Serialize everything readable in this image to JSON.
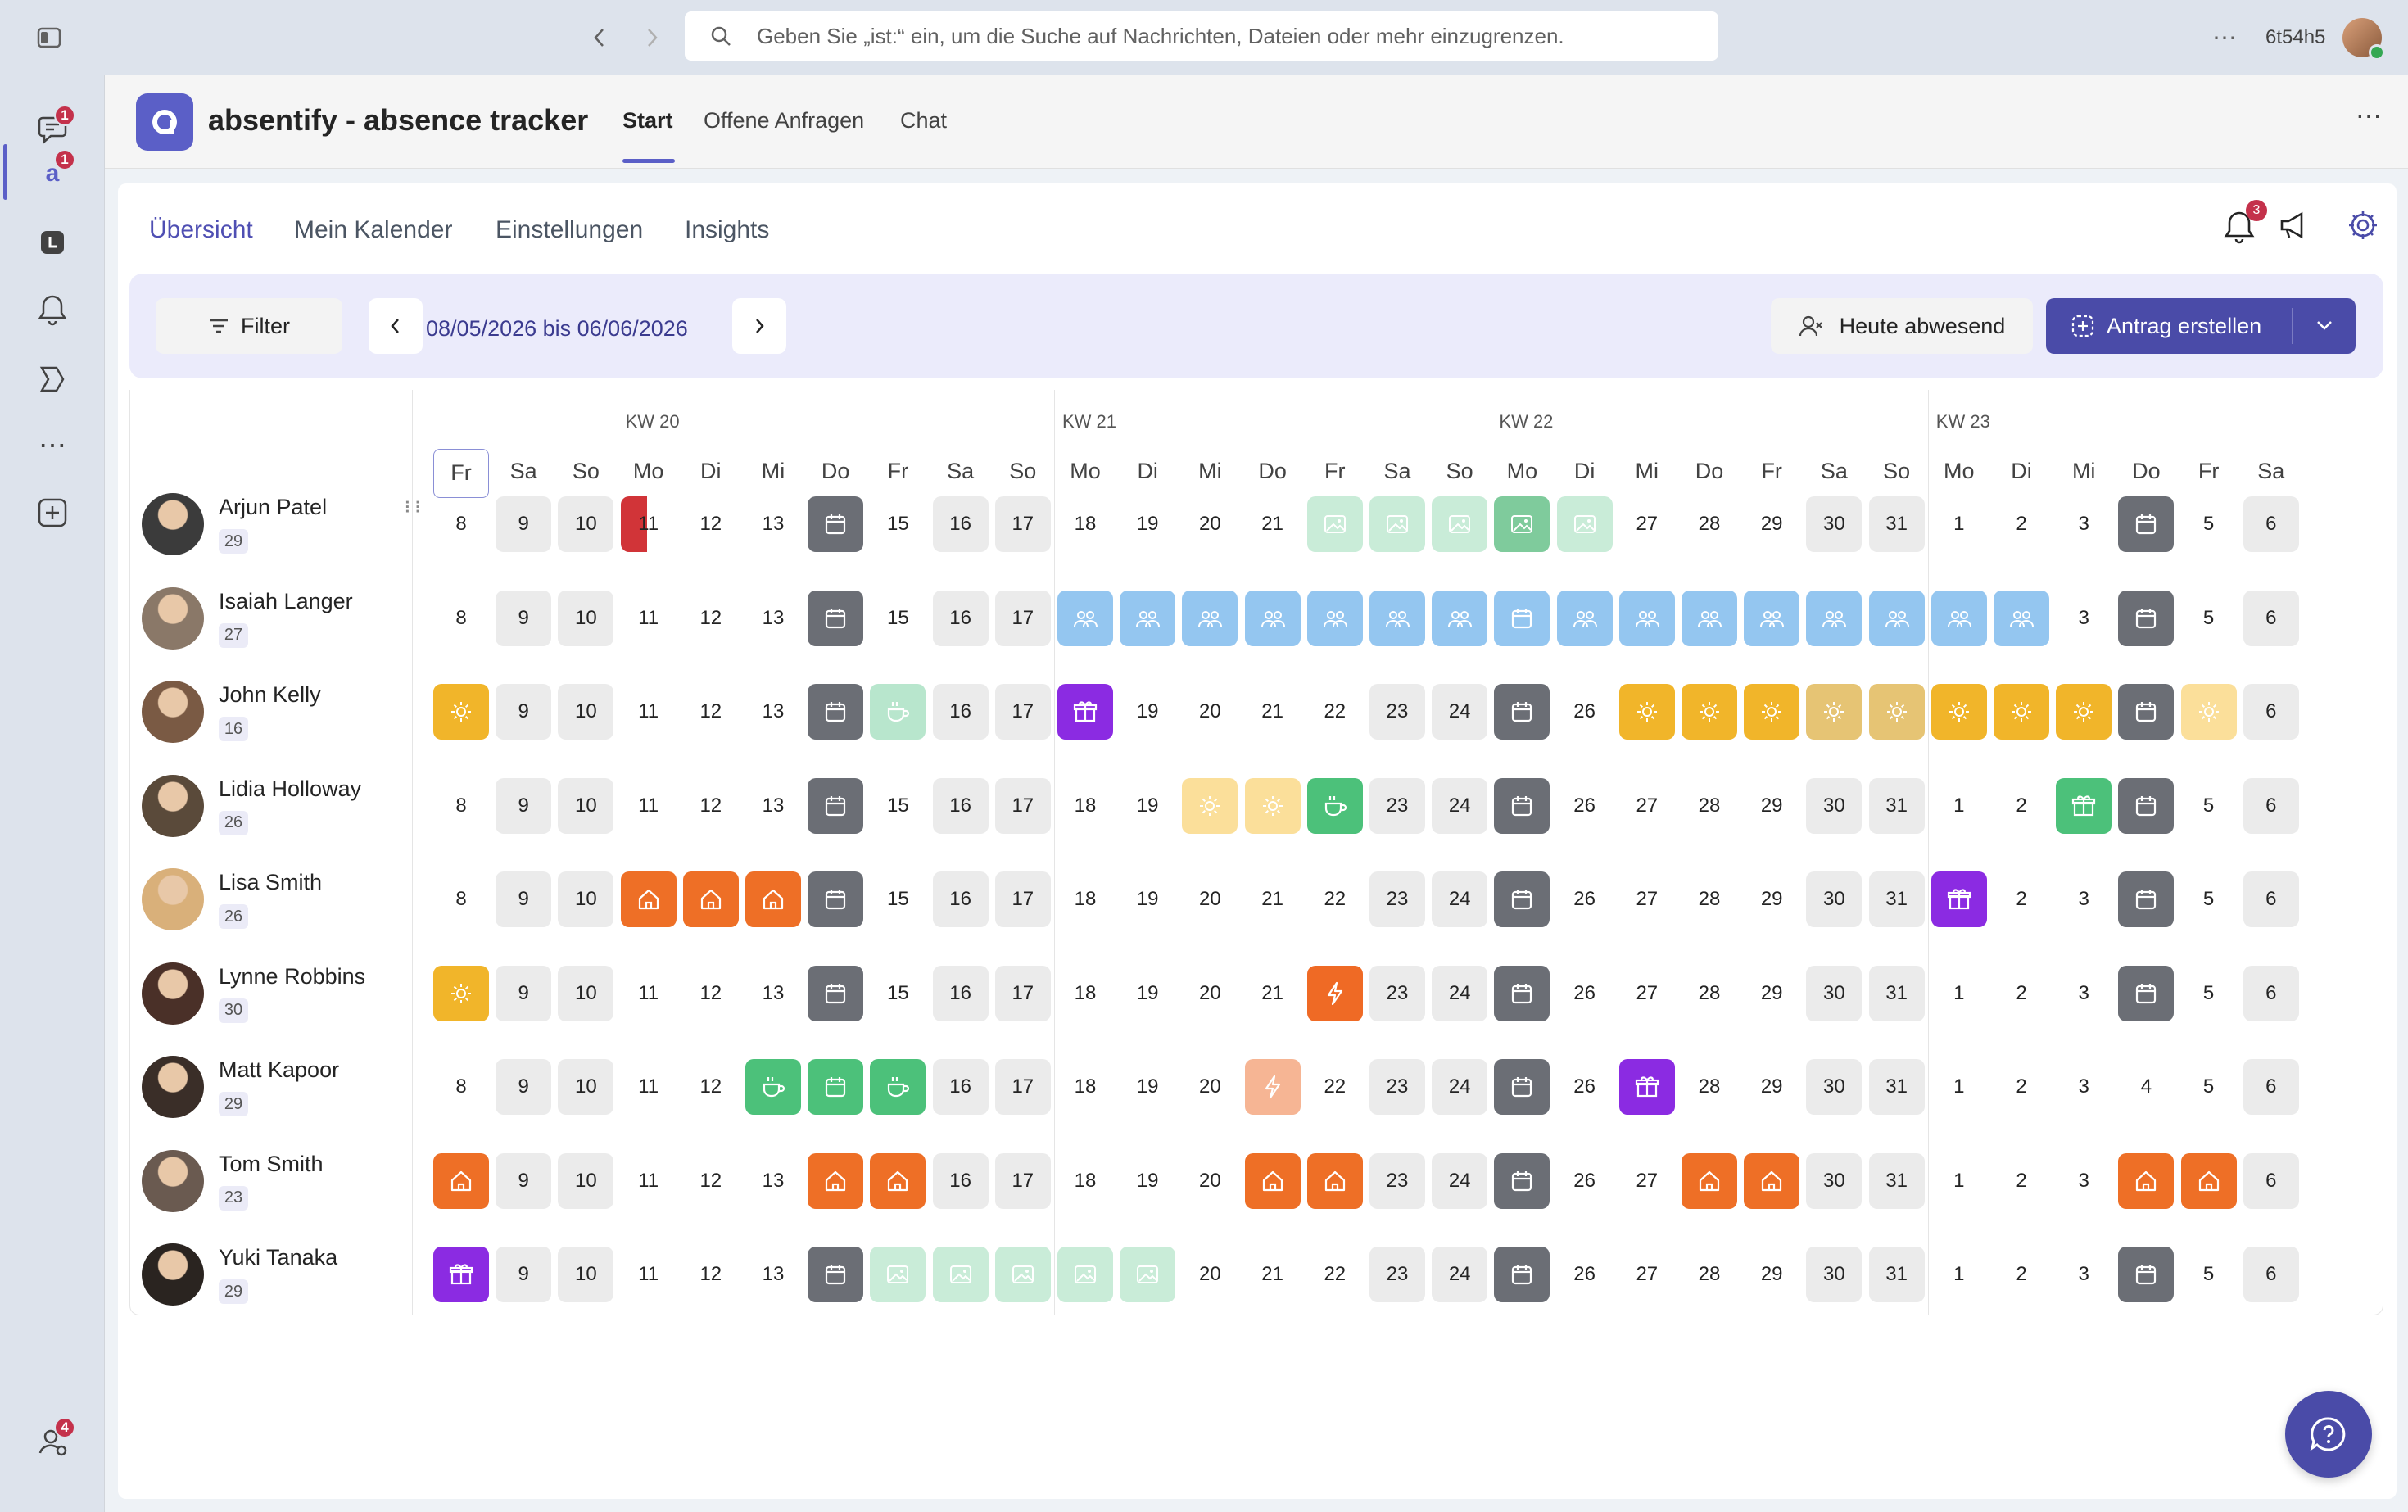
{
  "search": {
    "placeholder": "Geben Sie „ist:“ ein, um die Suche auf Nachrichten, Dateien oder mehr einzugrenzen."
  },
  "account": {
    "name": "6t54h5"
  },
  "rail": {
    "badges": {
      "chat": "1",
      "absentify": "1",
      "bottom": "4"
    }
  },
  "app": {
    "title": "absentify - absence tracker",
    "tabs": [
      "Start",
      "Offene Anfragen",
      "Chat"
    ]
  },
  "subtabs": [
    "Übersicht",
    "Mein Kalender",
    "Einstellungen",
    "Insights"
  ],
  "notifications": {
    "count": "3"
  },
  "toolbar": {
    "filter_label": "Filter",
    "date_range": "08/05/2026 bis 06/06/2026",
    "today_absent_label": "Heute abwesend",
    "create_label": "Antrag erstellen"
  },
  "colors": {
    "accent": "#5b5fc7",
    "weekend": "#ebebeb",
    "holiday": "#6b6e75",
    "holiday_light": "#a8dcc0",
    "vacation": "#f1b52a",
    "vacation_light": "#fbdf9a",
    "vacation_mid": "#e6c474",
    "homeoffice": "#ee6f26",
    "meeting": "#94c6f0",
    "sick": "#ef6a25",
    "sick_light": "#f6b594",
    "break": "#4cc17a",
    "break_light": "#b8e6cd",
    "birthday": "#8b2be2",
    "image": "#7fcb9c",
    "image_light": "#c9ecd8",
    "red": "#d13438"
  },
  "calendar": {
    "weeks": [
      {
        "label": "",
        "days": [
          [
            "Fr",
            "8"
          ],
          [
            "Sa",
            "9"
          ],
          [
            "So",
            "10"
          ]
        ]
      },
      {
        "label": "KW 20",
        "days": [
          [
            "Mo",
            "11"
          ],
          [
            "Di",
            "12"
          ],
          [
            "Mi",
            "13"
          ],
          [
            "Do",
            "14"
          ],
          [
            "Fr",
            "15"
          ],
          [
            "Sa",
            "16"
          ],
          [
            "So",
            "17"
          ]
        ]
      },
      {
        "label": "KW 21",
        "days": [
          [
            "Mo",
            "18"
          ],
          [
            "Di",
            "19"
          ],
          [
            "Mi",
            "20"
          ],
          [
            "Do",
            "21"
          ],
          [
            "Fr",
            "22"
          ],
          [
            "Sa",
            "23"
          ],
          [
            "So",
            "24"
          ]
        ]
      },
      {
        "label": "KW 22",
        "days": [
          [
            "Mo",
            "25"
          ],
          [
            "Di",
            "26"
          ],
          [
            "Mi",
            "27"
          ],
          [
            "Do",
            "28"
          ],
          [
            "Fr",
            "29"
          ],
          [
            "Sa",
            "30"
          ],
          [
            "So",
            "31"
          ]
        ]
      },
      {
        "label": "KW 23",
        "days": [
          [
            "Mo",
            "1"
          ],
          [
            "Di",
            "2"
          ],
          [
            "Mi",
            "3"
          ],
          [
            "Do",
            "4"
          ],
          [
            "Fr",
            "5"
          ],
          [
            "Sa",
            "6"
          ]
        ]
      }
    ],
    "today_index": 0,
    "people": [
      {
        "name": "Arjun Patel",
        "count": "29",
        "avatar": "#3b3b3b",
        "cells": [
          "",
          "we",
          "we",
          "redhalf",
          "",
          "",
          "hol",
          "",
          "we",
          "we",
          "",
          "",
          "",
          "",
          "img_l",
          "img_l",
          "img_l",
          "img",
          "img_l",
          "",
          "",
          "",
          "we",
          "we",
          "",
          "",
          "",
          "hol",
          "",
          "we"
        ]
      },
      {
        "name": "Isaiah Langer",
        "count": "27",
        "avatar": "#8a7868",
        "cells": [
          "",
          "we",
          "we",
          "",
          "",
          "",
          "hol",
          "",
          "we",
          "we",
          "mtg",
          "mtg",
          "mtg",
          "mtg",
          "mtg",
          "mtg",
          "mtg",
          "mtgh",
          "mtg",
          "mtg",
          "mtg",
          "mtg",
          "mtg",
          "mtg",
          "mtg",
          "mtg",
          "",
          "hol",
          "",
          "we"
        ]
      },
      {
        "name": "John Kelly",
        "count": "16",
        "avatar": "#7a5a44",
        "cells": [
          "vac",
          "we",
          "we",
          "",
          "",
          "",
          "hol",
          "brk_l",
          "we",
          "we",
          "bday",
          "",
          "",
          "",
          "",
          "we",
          "we",
          "hol",
          "",
          "vac",
          "vac",
          "vac",
          "vac_m",
          "vac_m",
          "vac",
          "vac",
          "vac",
          "hol",
          "vac_l",
          "we"
        ]
      },
      {
        "name": "Lidia Holloway",
        "count": "26",
        "avatar": "#5a4a3a",
        "cells": [
          "",
          "we",
          "we",
          "",
          "",
          "",
          "hol",
          "",
          "we",
          "we",
          "",
          "",
          "vac_l",
          "vac_l",
          "brk",
          "we",
          "we",
          "hol",
          "",
          "",
          "",
          "",
          "we",
          "we",
          "",
          "",
          "gift",
          "hol",
          "",
          "we"
        ]
      },
      {
        "name": "Lisa Smith",
        "count": "26",
        "avatar": "#d9b07a",
        "cells": [
          "",
          "we",
          "we",
          "home",
          "home",
          "home",
          "hol",
          "",
          "we",
          "we",
          "",
          "",
          "",
          "",
          "",
          "we",
          "we",
          "hol",
          "",
          "",
          "",
          "",
          "we",
          "we",
          "bday",
          "",
          "",
          "hol",
          "",
          "we"
        ]
      },
      {
        "name": "Lynne Robbins",
        "count": "30",
        "avatar": "#4a3028",
        "cells": [
          "vac",
          "we",
          "we",
          "",
          "",
          "",
          "hol",
          "",
          "we",
          "we",
          "",
          "",
          "",
          "",
          "sick",
          "we",
          "we",
          "hol",
          "",
          "",
          "",
          "",
          "we",
          "we",
          "",
          "",
          "",
          "hol",
          "",
          "we"
        ]
      },
      {
        "name": "Matt Kapoor",
        "count": "29",
        "avatar": "#3a2e28",
        "cells": [
          "",
          "we",
          "we",
          "",
          "",
          "brk",
          "hol_g",
          "brk",
          "we",
          "we",
          "",
          "",
          "",
          "sick_l",
          "",
          "we",
          "we",
          "hol",
          "",
          "bday",
          "",
          "",
          "we",
          "we",
          "",
          "",
          "",
          "",
          "",
          "we"
        ]
      },
      {
        "name": "Tom Smith",
        "count": "23",
        "avatar": "#6a5a50",
        "cells": [
          "home",
          "we",
          "we",
          "",
          "",
          "",
          "home",
          "home",
          "we",
          "we",
          "",
          "",
          "",
          "home",
          "home",
          "we",
          "we",
          "hol",
          "",
          "",
          "home",
          "home",
          "we",
          "we",
          "",
          "",
          "",
          "home",
          "home",
          "we"
        ]
      },
      {
        "name": "Yuki Tanaka",
        "count": "29",
        "avatar": "#2a2420",
        "cells": [
          "bday",
          "we",
          "we",
          "",
          "",
          "",
          "hol",
          "img_l",
          "img_l",
          "img_l",
          "img_l",
          "img_l",
          "",
          "",
          "",
          "we",
          "we",
          "hol",
          "",
          "",
          "",
          "",
          "we",
          "we",
          "",
          "",
          "",
          "hol",
          "",
          "we"
        ]
      }
    ]
  }
}
